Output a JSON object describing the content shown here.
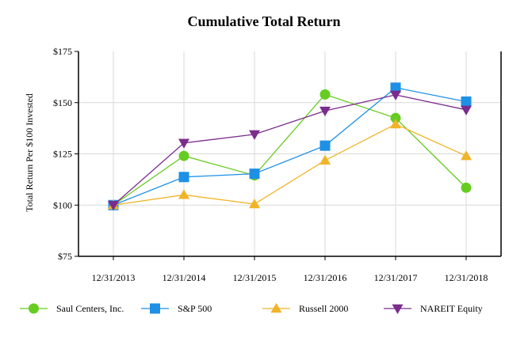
{
  "chart_data": {
    "type": "line",
    "title": "Cumulative Total Return",
    "xlabel": "",
    "ylabel": "Total Return Per $100 Invested",
    "categories": [
      "12/31/2013",
      "12/31/2014",
      "12/31/2015",
      "12/31/2016",
      "12/31/2017",
      "12/31/2018"
    ],
    "ylim": [
      75,
      175
    ],
    "yticks": [
      75,
      100,
      125,
      150,
      175
    ],
    "ytick_labels": [
      "$75",
      "$100",
      "$125",
      "$150",
      "$175"
    ],
    "grid": true,
    "legend_position": "bottom",
    "series": [
      {
        "name": "Saul Centers, Inc.",
        "color": "#66cc22",
        "marker": "circle",
        "values": [
          100,
          124,
          114.5,
          154,
          142.5,
          108.5
        ]
      },
      {
        "name": "S&P 500",
        "color": "#1e90e6",
        "marker": "square",
        "values": [
          100,
          113.7,
          115.3,
          129,
          157.3,
          150.5
        ]
      },
      {
        "name": "Russell 2000",
        "color": "#f0b428",
        "marker": "triangle-up",
        "values": [
          100,
          105,
          100.5,
          121.8,
          139.5,
          124
        ]
      },
      {
        "name": "NAREIT Equity",
        "color": "#7b2d8e",
        "marker": "triangle-down",
        "values": [
          100,
          130.3,
          134.5,
          146,
          153.8,
          146.5
        ]
      }
    ]
  }
}
